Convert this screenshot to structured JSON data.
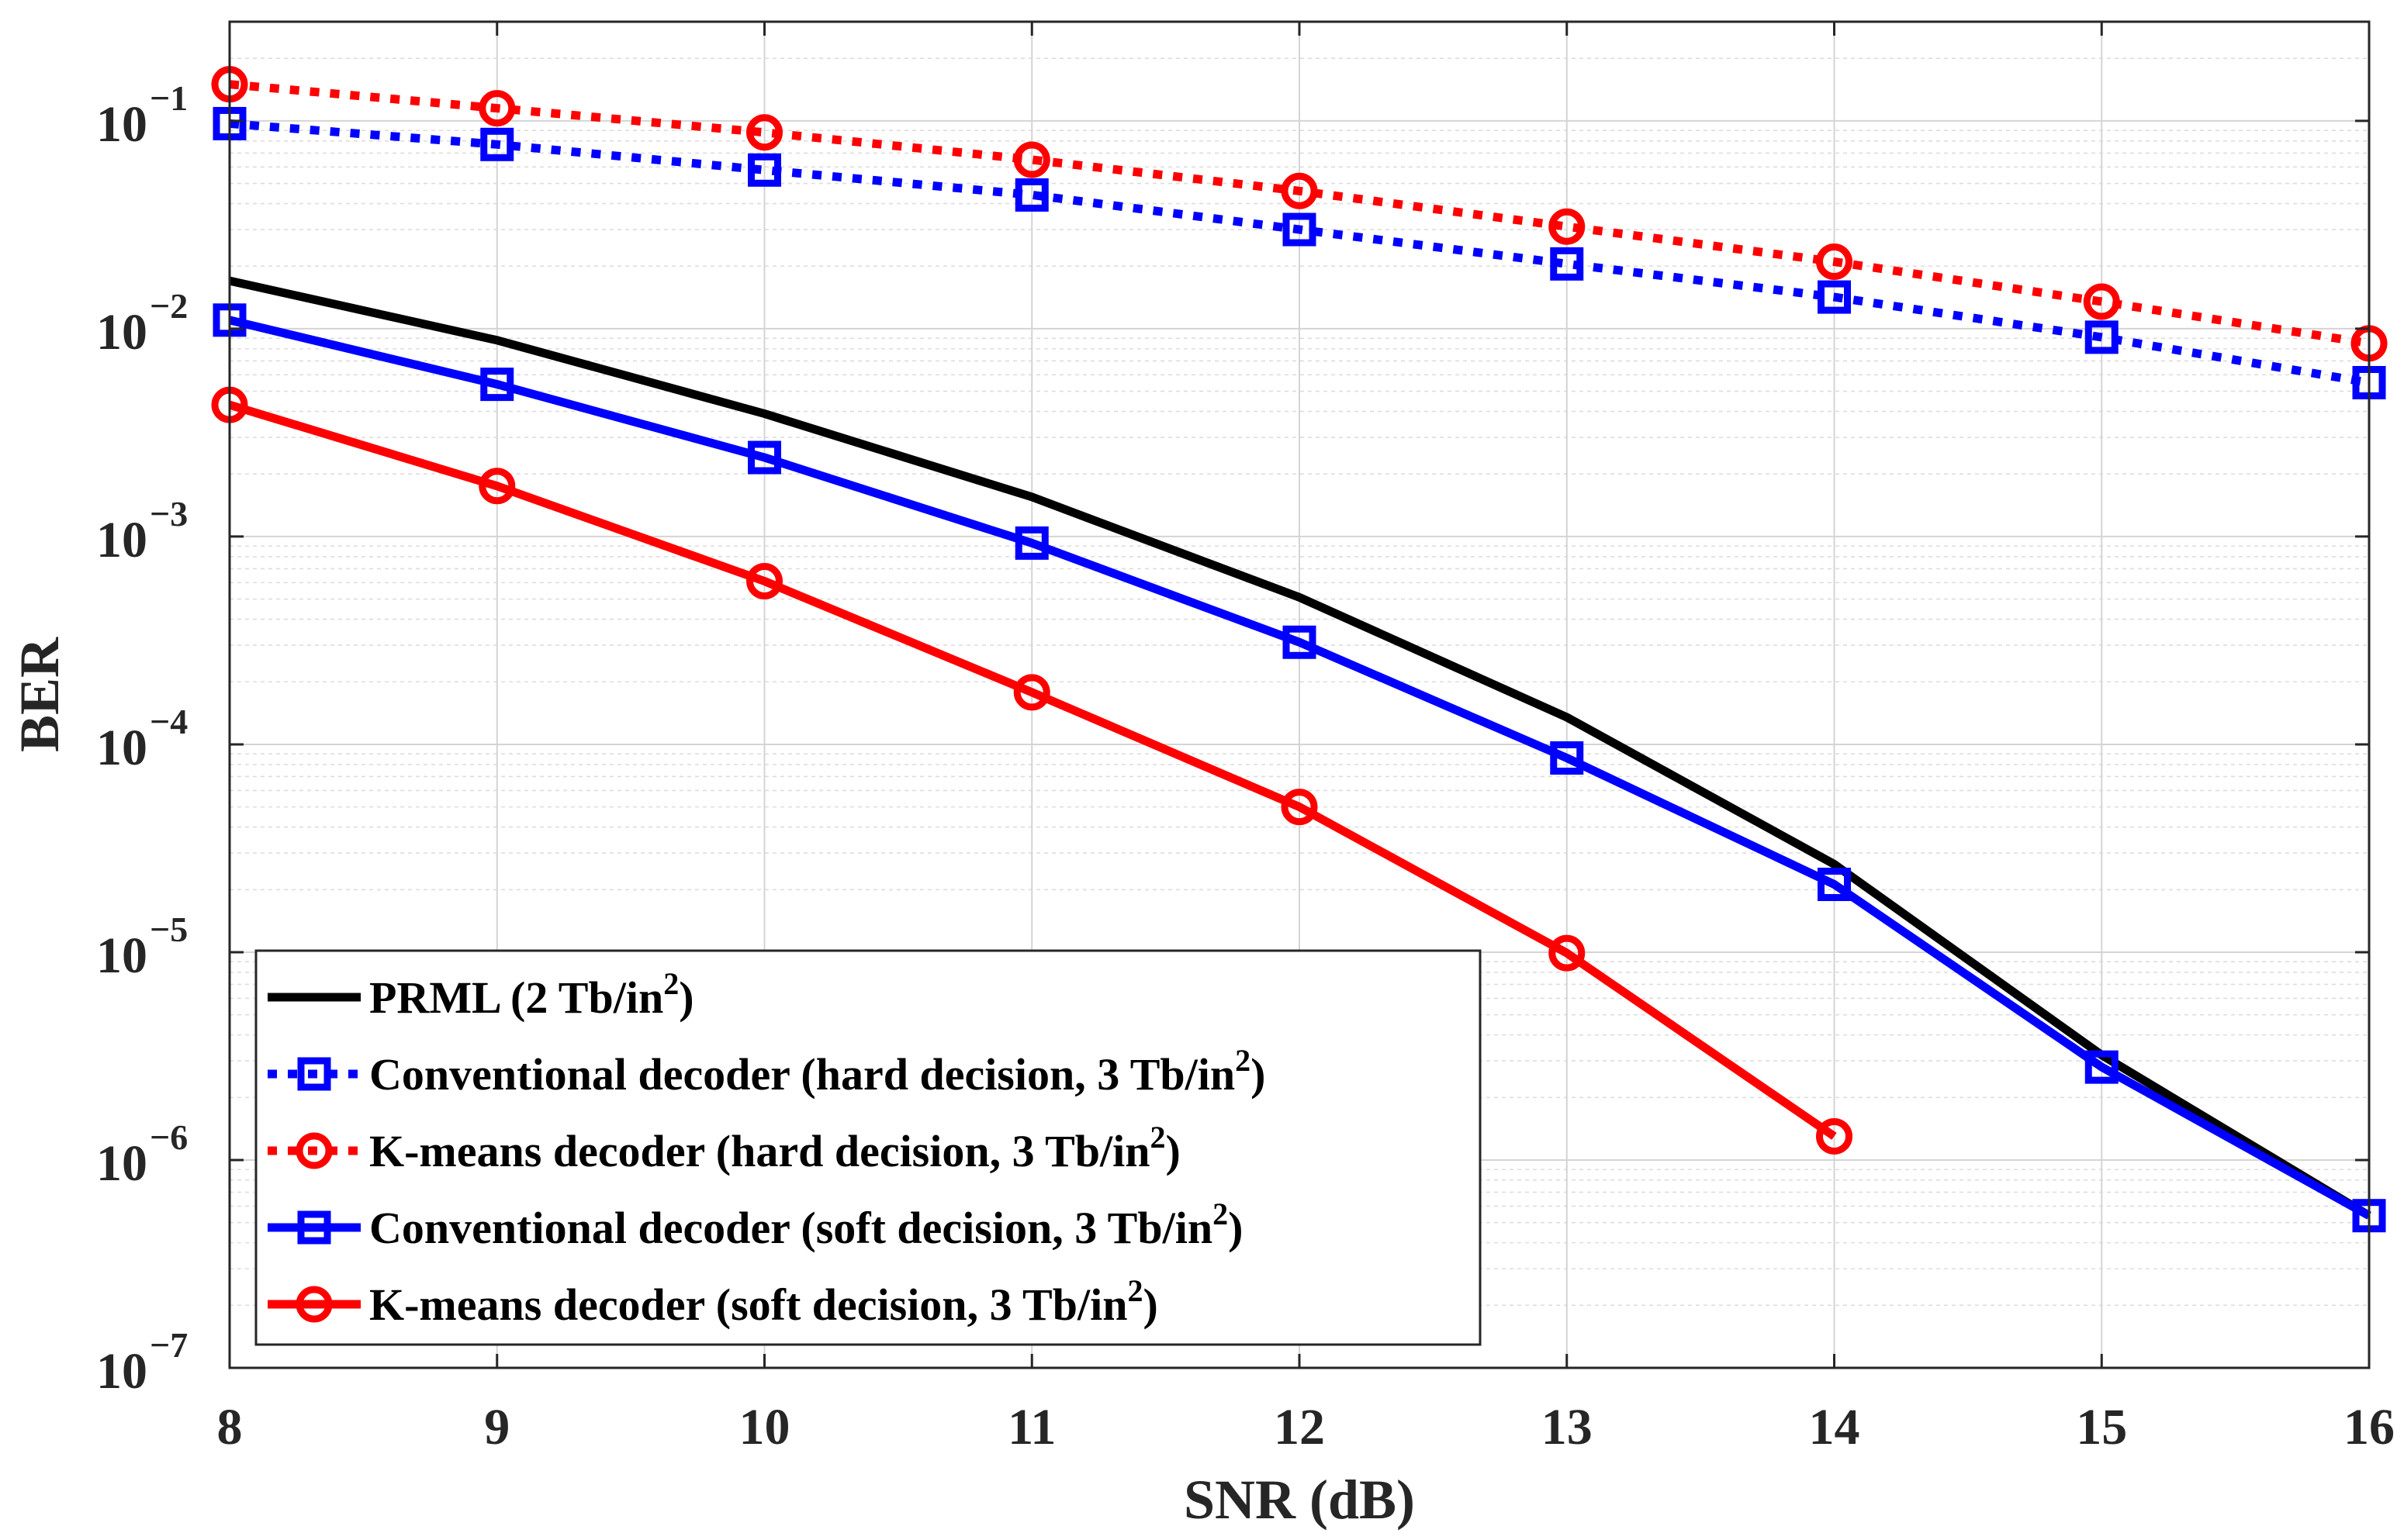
{
  "chart_data": {
    "type": "line",
    "title": "",
    "xlabel": "SNR (dB)",
    "ylabel": "BER",
    "xlim": [
      8,
      16
    ],
    "ylim": [
      1e-07,
      0.3
    ],
    "yscale": "log",
    "grid": true,
    "minor_grid": true,
    "legend_position": "bottom-left",
    "x_ticks": [
      8,
      9,
      10,
      11,
      12,
      13,
      14,
      15,
      16
    ],
    "x_tick_labels": [
      "8",
      "9",
      "10",
      "11",
      "12",
      "13",
      "14",
      "15",
      "16"
    ],
    "y_ticks": [
      {
        "value": 0.1,
        "base": "10",
        "exp": "−1"
      },
      {
        "value": 0.01,
        "base": "10",
        "exp": "−2"
      },
      {
        "value": 0.001,
        "base": "10",
        "exp": "−3"
      },
      {
        "value": 0.0001,
        "base": "10",
        "exp": "−4"
      },
      {
        "value": 1e-05,
        "base": "10",
        "exp": "−5"
      },
      {
        "value": 1e-06,
        "base": "10",
        "exp": "−6"
      },
      {
        "value": 1e-07,
        "base": "10",
        "exp": "−7"
      }
    ],
    "series": [
      {
        "name": "PRML (2 Tb/in",
        "name_sup": "2",
        "name_end": ")",
        "color": "#000000",
        "line_style": "solid",
        "marker": "none",
        "x": [
          8,
          9,
          10,
          11,
          12,
          13,
          14,
          15,
          16
        ],
        "values": [
          0.017,
          0.0088,
          0.0039,
          0.00155,
          0.00051,
          0.000135,
          2.65e-05,
          3.2e-06,
          5.4e-07
        ]
      },
      {
        "name": "Conventional decoder (hard decision, 3 Tb/in",
        "name_sup": "2",
        "name_end": ")",
        "color": "#0000ff",
        "line_style": "dotted",
        "marker": "square",
        "x": [
          8,
          9,
          10,
          11,
          12,
          13,
          14,
          15,
          16
        ],
        "values": [
          0.097,
          0.077,
          0.058,
          0.044,
          0.03,
          0.0205,
          0.0142,
          0.0091,
          0.0055
        ]
      },
      {
        "name": "K-means decoder (hard decision, 3 Tb/in",
        "name_sup": "2",
        "name_end": ")",
        "color": "#ff0000",
        "line_style": "dotted",
        "marker": "circle",
        "x": [
          8,
          9,
          10,
          11,
          12,
          13,
          14,
          15,
          16
        ],
        "values": [
          0.15,
          0.115,
          0.088,
          0.065,
          0.046,
          0.031,
          0.021,
          0.0135,
          0.0085
        ]
      },
      {
        "name": "Conventional decoder (soft decision, 3 Tb/in",
        "name_sup": "2",
        "name_end": ")",
        "color": "#0000ff",
        "line_style": "solid",
        "marker": "square",
        "x": [
          8,
          9,
          10,
          11,
          12,
          13,
          14,
          15,
          16
        ],
        "values": [
          0.011,
          0.0054,
          0.0024,
          0.00093,
          0.00031,
          8.6e-05,
          2.12e-05,
          2.8e-06,
          5.4e-07
        ]
      },
      {
        "name": "K-means decoder (soft decision, 3 Tb/in",
        "name_sup": "2",
        "name_end": ")",
        "color": "#ff0000",
        "line_style": "solid",
        "marker": "circle",
        "x": [
          8,
          9,
          10,
          11,
          12,
          13,
          14
        ],
        "values": [
          0.0043,
          0.00175,
          0.00061,
          0.000178,
          5e-05,
          9.9e-06,
          1.3e-06
        ]
      }
    ]
  }
}
